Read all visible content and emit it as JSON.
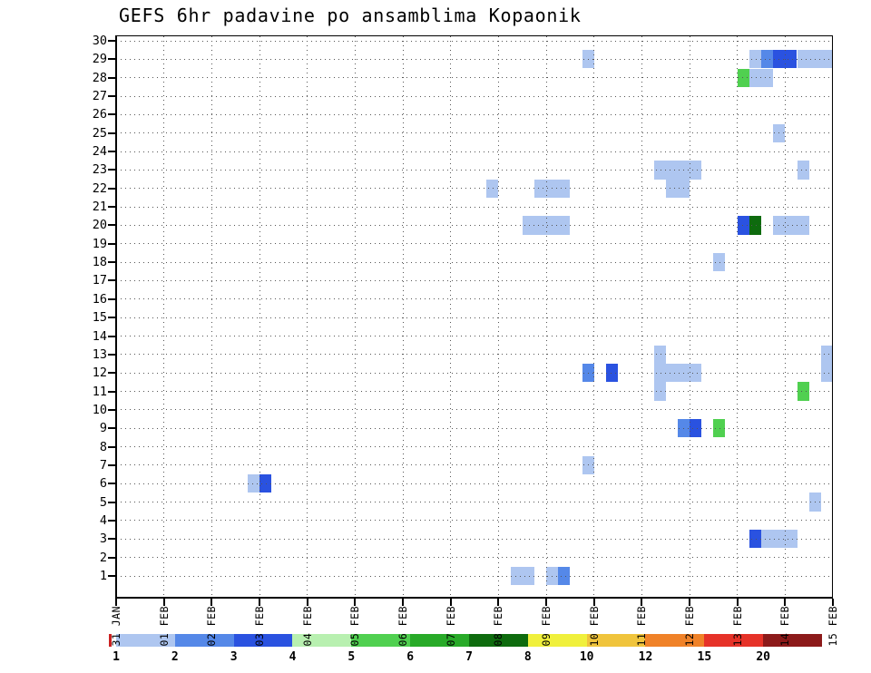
{
  "title": "GEFS 6hr padavine po ansamblima Kopaonik",
  "colors": {
    "background": "#ffffff",
    "axis": "#000000",
    "grid": "#555555",
    "title": "#000000"
  },
  "chart_data": {
    "type": "heatmap",
    "title": "GEFS 6hr padavine po ansamblima Kopaonik",
    "grid": "dotted",
    "legend_position": "bottom",
    "x_ticks": [
      "31 JAN",
      "01 FEB",
      "02 FEB",
      "03 FEB",
      "04 FEB",
      "05 FEB",
      "06 FEB",
      "07 FEB",
      "08 FEB",
      "09 FEB",
      "10 FEB",
      "11 FEB",
      "12 FEB",
      "13 FEB",
      "14 FEB",
      "15 FEB"
    ],
    "y_ticks": [
      "1",
      "2",
      "3",
      "4",
      "5",
      "6",
      "7",
      "8",
      "9",
      "10",
      "11",
      "12",
      "13",
      "14",
      "15",
      "16",
      "17",
      "18",
      "19",
      "20",
      "21",
      "22",
      "23",
      "24",
      "25",
      "26",
      "27",
      "28",
      "29",
      "30"
    ],
    "x_axis": {
      "days": 15,
      "step_hours": 6
    },
    "y_axis": {
      "min": 1,
      "max": 30
    },
    "colorbar": {
      "labels": [
        "1",
        "2",
        "3",
        "4",
        "5",
        "6",
        "7",
        "8",
        "10",
        "12",
        "15",
        "20"
      ],
      "colors": [
        "#aec6f0",
        "#5588e8",
        "#2a52e0",
        "#b8f0b0",
        "#50d050",
        "#28aa28",
        "#0e6b0e",
        "#f0f03c",
        "#f0c43c",
        "#f08228",
        "#e63228",
        "#8c1a1a"
      ],
      "left_cap_color": "#cc2222"
    },
    "cells_format": [
      "member",
      "start_day_offset_from_31JAN",
      "width_in_6h_steps",
      "level_mm"
    ],
    "cells": [
      [
        29,
        9.75,
        1,
        1
      ],
      [
        29,
        13.25,
        1,
        1
      ],
      [
        29,
        13.5,
        1,
        2
      ],
      [
        29,
        13.75,
        2,
        3
      ],
      [
        29,
        14.25,
        3,
        1
      ],
      [
        28,
        13,
        1,
        5
      ],
      [
        28,
        13.25,
        2,
        1
      ],
      [
        25,
        13.75,
        1,
        1
      ],
      [
        23,
        11.25,
        4,
        1
      ],
      [
        23,
        14.25,
        1,
        1
      ],
      [
        22,
        7.75,
        1,
        1
      ],
      [
        22,
        8.75,
        3,
        1
      ],
      [
        22,
        11.5,
        2,
        1
      ],
      [
        20,
        8.5,
        4,
        1
      ],
      [
        20,
        13,
        1,
        3
      ],
      [
        20,
        13.25,
        1,
        7
      ],
      [
        20,
        13.75,
        3,
        1
      ],
      [
        18,
        12.5,
        1,
        1
      ],
      [
        13,
        11.25,
        1,
        1
      ],
      [
        13,
        14.75,
        1,
        1
      ],
      [
        12,
        9.75,
        1,
        2
      ],
      [
        12,
        10.25,
        1,
        3
      ],
      [
        12,
        11.25,
        4,
        1
      ],
      [
        12,
        14.75,
        1,
        1
      ],
      [
        11,
        11.25,
        1,
        1
      ],
      [
        11,
        14.25,
        1,
        5
      ],
      [
        9,
        11.75,
        1,
        2
      ],
      [
        9,
        12,
        1,
        3
      ],
      [
        9,
        12.5,
        1,
        5
      ],
      [
        7,
        9.75,
        1,
        1
      ],
      [
        6,
        2.75,
        1,
        1
      ],
      [
        6,
        3,
        1,
        3
      ],
      [
        5,
        14.5,
        1,
        1
      ],
      [
        3,
        13.25,
        1,
        3
      ],
      [
        3,
        13.5,
        3,
        1
      ],
      [
        1,
        8.25,
        2,
        1
      ],
      [
        1,
        9,
        1,
        1
      ],
      [
        1,
        9.25,
        1,
        2
      ]
    ]
  }
}
